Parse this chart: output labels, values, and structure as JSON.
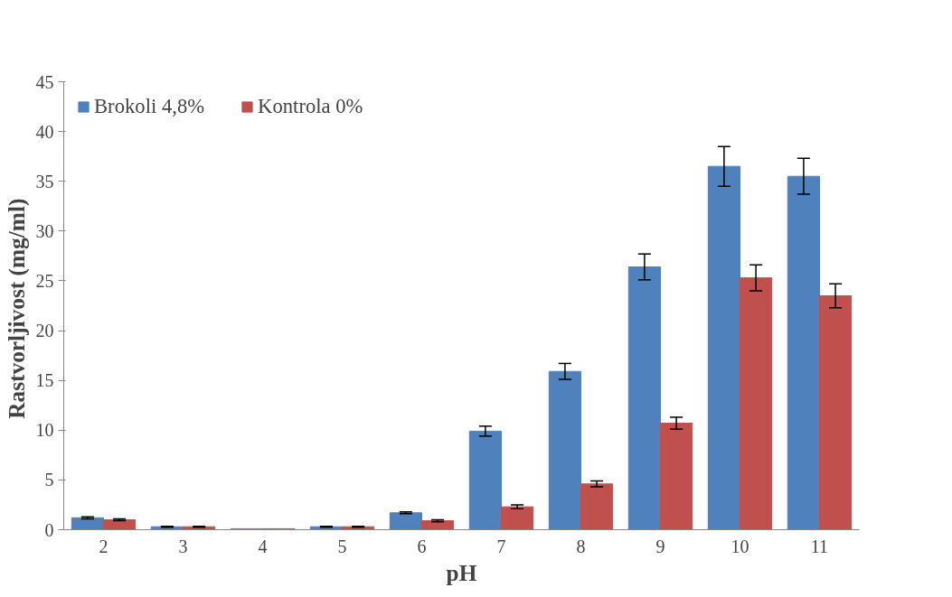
{
  "chart_data": {
    "type": "bar",
    "xlabel": "pH",
    "ylabel": "Rastvorljivost  (mg/ml)",
    "categories": [
      "2",
      "3",
      "4",
      "5",
      "6",
      "7",
      "8",
      "9",
      "10",
      "11"
    ],
    "series": [
      {
        "name": "Brokoli 4,8%",
        "color": "#4f81bd",
        "values": [
          1.2,
          0.3,
          0.1,
          0.3,
          1.7,
          9.9,
          15.9,
          26.4,
          36.5,
          35.5
        ],
        "errors": [
          0.1,
          0.05,
          null,
          0.05,
          0.1,
          0.5,
          0.8,
          1.3,
          2.0,
          1.8
        ]
      },
      {
        "name": "Kontrola 0%",
        "color": "#c0504d",
        "values": [
          1.0,
          0.3,
          0.1,
          0.3,
          0.9,
          2.3,
          4.6,
          10.7,
          25.3,
          23.5
        ],
        "errors": [
          0.1,
          0.05,
          null,
          0.05,
          0.1,
          0.2,
          0.3,
          0.6,
          1.3,
          1.2
        ]
      }
    ],
    "ylim": [
      0,
      45
    ],
    "yticks": [
      0,
      5,
      10,
      15,
      20,
      25,
      30,
      35,
      40,
      45
    ],
    "grid": false,
    "legend": "top left"
  }
}
